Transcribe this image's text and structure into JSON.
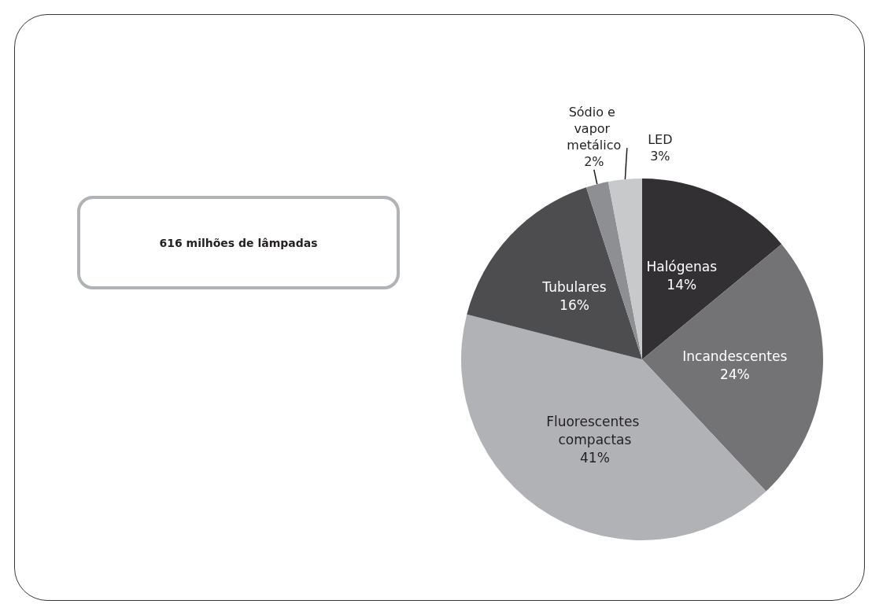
{
  "chart_data": {
    "type": "pie",
    "categories": [
      "Halógenas",
      "Incandescentes",
      "Fluorescentes compactas",
      "Tubulares",
      "Sódio e vapor metálico",
      "LED"
    ],
    "values": [
      14,
      24,
      41,
      16,
      2,
      3
    ],
    "colors": [
      "#323032",
      "#737375",
      "#b1b2b5",
      "#4d4c4f",
      "#8e8f92",
      "#c8c9cb"
    ],
    "value_labels": [
      "14%",
      "24%",
      "41%",
      "16%",
      "2%",
      "3%"
    ],
    "annotations": [
      "616 milhões de lâmpadas"
    ]
  }
}
